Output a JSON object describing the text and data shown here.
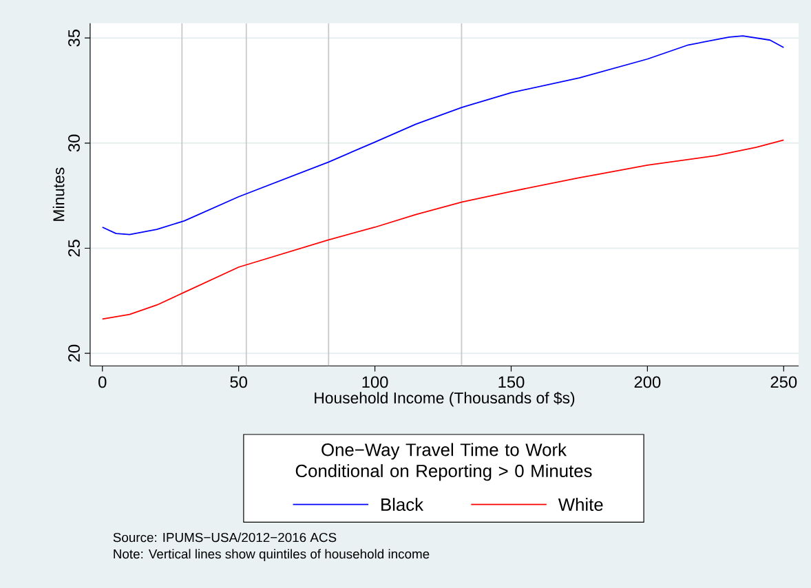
{
  "chart_data": {
    "type": "line",
    "xlabel": "Household Income (Thousands of $s)",
    "ylabel": "Minutes",
    "legend_title": "One−Way Travel Time to Work Conditional on Reporting > 0 Minutes",
    "xlim": [
      -4.5,
      255.5
    ],
    "ylim": [
      19.4,
      35.7
    ],
    "xticks": [
      0,
      50,
      100,
      150,
      200,
      250
    ],
    "yticks": [
      20,
      25,
      30,
      35
    ],
    "grid": "y",
    "legend": "bottom",
    "series": [
      {
        "name": "Black",
        "color": "#0000ff",
        "x": [
          0,
          5,
          10,
          20,
          30,
          50,
          83,
          100,
          115,
          132,
          150,
          175,
          200,
          215,
          230,
          235,
          245,
          250
        ],
        "values": [
          26.0,
          25.7,
          25.65,
          25.9,
          26.3,
          27.45,
          29.1,
          30.05,
          30.9,
          31.7,
          32.4,
          33.1,
          34.0,
          34.67,
          35.04,
          35.1,
          34.9,
          34.55
        ]
      },
      {
        "name": "White",
        "color": "#ff0000",
        "x": [
          0,
          10,
          20,
          30,
          50,
          83,
          100,
          115,
          132,
          150,
          175,
          200,
          225,
          240,
          250
        ],
        "values": [
          21.63,
          21.85,
          22.3,
          22.9,
          24.1,
          25.4,
          26.0,
          26.6,
          27.2,
          27.7,
          28.35,
          28.95,
          29.4,
          29.8,
          30.15
        ]
      }
    ],
    "ref_lines": [
      {
        "axis": "x",
        "value": 29.2,
        "color": "#c8c8c8"
      },
      {
        "axis": "x",
        "value": 52.8,
        "color": "#c8c8c8"
      },
      {
        "axis": "x",
        "value": 83,
        "color": "#c8c8c8"
      },
      {
        "axis": "x",
        "value": 131.8,
        "color": "#c8c8c8"
      }
    ],
    "annotations": [
      "Source:  IPUMS−USA/2012−2016 ACS",
      "Note:  Vertical lines show quintiles of household income"
    ]
  }
}
